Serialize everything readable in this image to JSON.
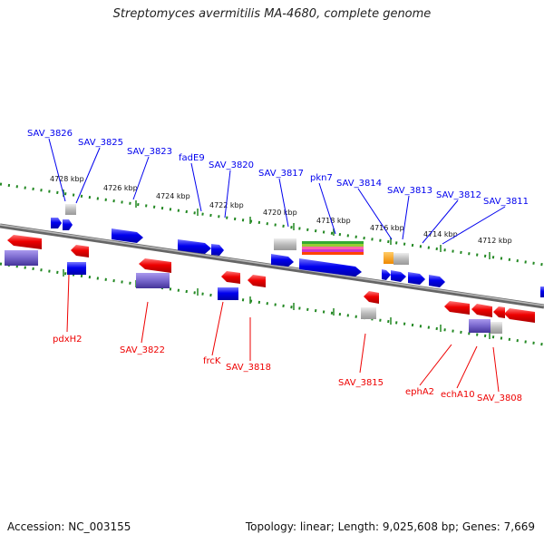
{
  "title": "Streptomyces avermitilis MA-4680, complete genome",
  "footer": {
    "accession": "Accession: NC_003155",
    "summary": "Topology: linear; Length: 9,025,608 bp; Genes: 7,669"
  },
  "colors": {
    "forward": "#0000ee",
    "reverse": "#ee0000",
    "pseudo": "#bbbbbb",
    "rna": "#7766cc",
    "highlight": "#ff9900",
    "backbone": "#888888",
    "ruler": "#228822"
  },
  "kbp_ticks": [
    "4728 kbp",
    "4726 kbp",
    "4724 kbp",
    "4722 kbp",
    "4720 kbp",
    "4718 kbp",
    "4716 kbp",
    "4714 kbp",
    "4712 kbp"
  ],
  "top_labels": [
    "SAV_3826",
    "SAV_3825",
    "SAV_3823",
    "fadE9",
    "SAV_3820",
    "SAV_3817",
    "pkn7",
    "SAV_3814",
    "SAV_3813",
    "SAV_3812",
    "SAV_3811"
  ],
  "bottom_labels": [
    "pdxH2",
    "SAV_3822",
    "frcK",
    "SAV_3818",
    "SAV_3815",
    "ephA2",
    "echA10",
    "SAV_3808"
  ]
}
